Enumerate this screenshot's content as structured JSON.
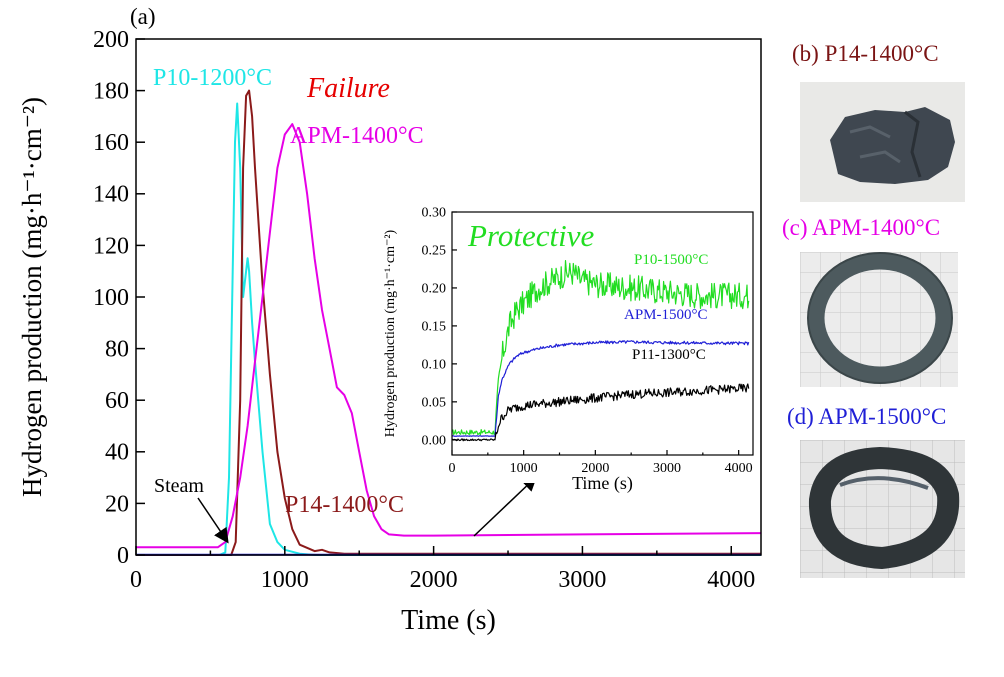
{
  "chart_data": [
    {
      "panel": "(a)",
      "type": "line",
      "xlabel": "Time (s)",
      "ylabel": "Hydrogen production (mg·h⁻¹·cm⁻²)",
      "xlim": [
        0,
        4200
      ],
      "ylim": [
        0,
        200
      ],
      "xticks": [
        "0",
        "1000",
        "2000",
        "3000",
        "4000"
      ],
      "yticks": [
        "0",
        "20",
        "40",
        "60",
        "80",
        "100",
        "120",
        "140",
        "160",
        "180",
        "200"
      ],
      "annotations": {
        "failure": "Failure",
        "steam": "Steam"
      },
      "series": [
        {
          "name": "P10-1200°C",
          "color": "#1ee6e6",
          "x": [
            0,
            560,
            600,
            625,
            650,
            665,
            680,
            700,
            720,
            740,
            750,
            760,
            780,
            800,
            850,
            900,
            950,
            1000,
            1100,
            1200,
            4200
          ],
          "y": [
            0,
            0,
            1,
            30,
            110,
            160,
            175,
            150,
            100,
            110,
            115,
            110,
            90,
            75,
            40,
            12,
            5,
            2,
            0.5,
            0,
            0
          ]
        },
        {
          "name": "P14-1400°C",
          "color": "#8b1a1a",
          "x": [
            0,
            640,
            670,
            700,
            720,
            740,
            760,
            780,
            800,
            850,
            900,
            950,
            1000,
            1050,
            1100,
            1200,
            1250,
            1300,
            1400,
            1600,
            4200
          ],
          "y": [
            0,
            0,
            5,
            60,
            150,
            178,
            180,
            170,
            150,
            105,
            70,
            40,
            22,
            10,
            4,
            1.5,
            2,
            1,
            0.5,
            0.5,
            0.5
          ]
        },
        {
          "name": "APM-1400°C",
          "color": "#e600e6",
          "x": [
            0,
            550,
            600,
            650,
            700,
            750,
            800,
            850,
            900,
            950,
            1000,
            1050,
            1100,
            1150,
            1200,
            1250,
            1300,
            1350,
            1400,
            1450,
            1500,
            1550,
            1600,
            1650,
            1700,
            1800,
            2000,
            3000,
            4200
          ],
          "y": [
            3,
            3,
            5,
            15,
            30,
            50,
            75,
            100,
            125,
            150,
            163,
            167,
            160,
            140,
            115,
            95,
            80,
            65,
            62,
            55,
            40,
            25,
            15,
            10,
            8,
            7.5,
            7.5,
            8,
            8.5
          ]
        },
        {
          "name": "APM-1500°C",
          "color": "#1f1fd6",
          "x": [
            0,
            4200
          ],
          "y": [
            0.1,
            0.1
          ]
        }
      ]
    },
    {
      "panel": "inset",
      "type": "line",
      "title": "Protective",
      "xlabel": "Time (s)",
      "ylabel": "Hydrogen production (mg·h⁻¹·cm⁻²)",
      "xlim": [
        0,
        4200
      ],
      "ylim": [
        -0.02,
        0.3
      ],
      "xticks": [
        "0",
        "1000",
        "2000",
        "3000",
        "4000"
      ],
      "yticks": [
        "0.00",
        "0.05",
        "0.10",
        "0.15",
        "0.20",
        "0.25",
        "0.30"
      ],
      "series": [
        {
          "name": "P10-1500°C",
          "color": "#22dd22",
          "x": [
            0,
            600,
            650,
            700,
            800,
            900,
            1000,
            1200,
            1400,
            1600,
            1700,
            1800,
            2000,
            2500,
            3000,
            3500,
            4150
          ],
          "y": [
            0.01,
            0.01,
            0.07,
            0.11,
            0.15,
            0.17,
            0.18,
            0.2,
            0.21,
            0.22,
            0.22,
            0.21,
            0.205,
            0.2,
            0.195,
            0.19,
            0.19
          ]
        },
        {
          "name": "APM-1500°C",
          "color": "#1f1fd6",
          "x": [
            0,
            600,
            650,
            700,
            800,
            900,
            1000,
            1200,
            1500,
            2000,
            2500,
            3000,
            4150
          ],
          "y": [
            0.005,
            0.005,
            0.06,
            0.08,
            0.1,
            0.11,
            0.115,
            0.12,
            0.125,
            0.128,
            0.129,
            0.128,
            0.127
          ]
        },
        {
          "name": "P11-1300°C",
          "color": "#000000",
          "x": [
            0,
            600,
            650,
            700,
            800,
            1000,
            1500,
            2000,
            2500,
            3000,
            3500,
            4150
          ],
          "y": [
            0.0,
            0.0,
            0.02,
            0.03,
            0.04,
            0.045,
            0.05,
            0.055,
            0.06,
            0.062,
            0.065,
            0.068
          ]
        }
      ]
    }
  ],
  "photos": [
    {
      "label": "(b) P14-1400°C",
      "color": "#7a1414",
      "subject": "rock-fragment"
    },
    {
      "label": "(c) APM-1400°C",
      "color": "#e600e6",
      "subject": "ring"
    },
    {
      "label": "(d) APM-1500°C",
      "color": "#1f1fd6",
      "subject": "deformed-ring"
    }
  ]
}
